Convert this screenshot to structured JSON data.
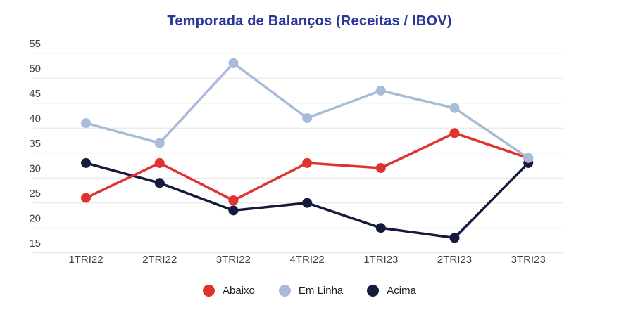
{
  "title": {
    "text": "Temporada de Balanços (Receitas / IBOV)"
  },
  "chart_data": {
    "type": "line",
    "title": "Temporada de Balanços (Receitas / IBOV)",
    "categories": [
      "1TRI22",
      "2TRI22",
      "3TRI22",
      "4TRI22",
      "1TRI23",
      "2TRI23",
      "3TRI23"
    ],
    "series": [
      {
        "name": "Abaixo",
        "color": "#e0322f",
        "values": [
          26,
          33,
          25.5,
          33,
          32,
          39,
          34
        ]
      },
      {
        "name": "Em Linha",
        "color": "#a7bcd9",
        "values": [
          41,
          37,
          53,
          42,
          47.5,
          44,
          34
        ]
      },
      {
        "name": "Acima",
        "color": "#161a3c",
        "values": [
          33,
          29,
          23.5,
          25,
          20,
          18,
          33
        ]
      }
    ],
    "xlabel": "",
    "ylabel": "",
    "ylim": [
      15,
      55
    ],
    "yticks": [
      15,
      20,
      25,
      30,
      35,
      40,
      45,
      50,
      55
    ],
    "grid": true,
    "legend_position": "bottom"
  },
  "colors": {
    "title": "#2b3699",
    "tick_text": "#424242",
    "grid": "#e6e6e6",
    "background": "#ffffff",
    "legend_text": "#212121"
  },
  "legend": {
    "items": [
      {
        "label": "Abaixo",
        "color": "#e0322f"
      },
      {
        "label": "Em Linha",
        "color": "#a7bcd9"
      },
      {
        "label": "Acima",
        "color": "#161a3c"
      }
    ]
  }
}
